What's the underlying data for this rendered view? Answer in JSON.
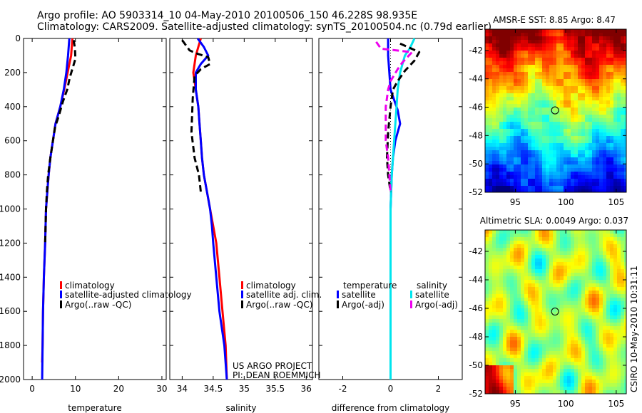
{
  "header": {
    "line1": "Argo profile: AO 5903314_10 04-May-2010 20100506_150 46.228S 98.935E",
    "line2": "Climatology: CARS2009. Satellite-adjusted climatology: synTS_20100504.nc (0.79d earlier)"
  },
  "colors": {
    "climatology": "#ff0000",
    "satellite": "#0000ff",
    "argo": "#000000",
    "sal_satellite": "#00e5ee",
    "sal_argo": "#ee00ee"
  },
  "chart_data": [
    {
      "type": "line",
      "xlabel": "temperature",
      "ylabel": "",
      "xlim": [
        -2,
        31
      ],
      "ylim": [
        2000,
        0
      ],
      "xticks": [
        0,
        10,
        20,
        30
      ],
      "yticks": [
        0,
        200,
        400,
        600,
        800,
        1000,
        1200,
        1400,
        1600,
        1800,
        2000
      ],
      "legend": [
        "climatology",
        "satellite-adjusted climatology",
        "Argo(..raw -QC)"
      ],
      "legend_position": "lower-right",
      "series": [
        {
          "name": "climatology",
          "color": "#ff0000",
          "points": [
            [
              9.3,
              0
            ],
            [
              9.0,
              100
            ],
            [
              8.2,
              200
            ],
            [
              7.4,
              300
            ],
            [
              6.5,
              400
            ],
            [
              5.4,
              500
            ],
            [
              4.8,
              600
            ],
            [
              4.2,
              700
            ],
            [
              3.8,
              800
            ],
            [
              3.5,
              900
            ],
            [
              3.2,
              1000
            ],
            [
              3.0,
              1200
            ],
            [
              2.7,
              1400
            ],
            [
              2.5,
              1600
            ],
            [
              2.4,
              1800
            ],
            [
              2.3,
              1900
            ]
          ]
        },
        {
          "name": "satellite-adjusted climatology",
          "color": "#0000ff",
          "points": [
            [
              8.6,
              0
            ],
            [
              8.3,
              100
            ],
            [
              7.9,
              200
            ],
            [
              7.3,
              300
            ],
            [
              6.5,
              400
            ],
            [
              5.4,
              500
            ],
            [
              4.8,
              600
            ],
            [
              4.2,
              700
            ],
            [
              3.8,
              800
            ],
            [
              3.5,
              900
            ],
            [
              3.2,
              1000
            ],
            [
              3.0,
              1200
            ],
            [
              2.7,
              1400
            ],
            [
              2.5,
              1600
            ],
            [
              2.4,
              1800
            ],
            [
              2.3,
              2000
            ]
          ]
        },
        {
          "name": "Argo(..raw -QC)",
          "color": "#000000",
          "dashed": true,
          "points": [
            [
              9.6,
              10
            ],
            [
              9.9,
              60
            ],
            [
              10.0,
              120
            ],
            [
              9.4,
              170
            ],
            [
              8.7,
              230
            ],
            [
              8.1,
              300
            ],
            [
              7.1,
              370
            ],
            [
              6.2,
              450
            ],
            [
              5.3,
              520
            ],
            [
              4.8,
              600
            ],
            [
              4.2,
              700
            ],
            [
              3.7,
              800
            ],
            [
              3.4,
              900
            ],
            [
              3.2,
              1000
            ],
            [
              3.0,
              1200
            ]
          ]
        }
      ]
    },
    {
      "type": "line",
      "xlabel": "salinity",
      "xlim": [
        33.8,
        36.1
      ],
      "ylim": [
        2000,
        0
      ],
      "xticks": [
        34,
        34.5,
        35,
        35.5,
        36
      ],
      "legend": [
        "climatology",
        "satellite adj. clim.",
        "Argo(..raw -QC)"
      ],
      "legend_position": "lower-right",
      "annotations": [
        "US ARGO PROJECT",
        "PI: DEAN ROEMMICH"
      ],
      "series": [
        {
          "name": "climatology",
          "color": "#ff0000",
          "points": [
            [
              34.3,
              0
            ],
            [
              34.22,
              100
            ],
            [
              34.18,
              200
            ],
            [
              34.22,
              300
            ],
            [
              34.26,
              400
            ],
            [
              34.28,
              500
            ],
            [
              34.3,
              600
            ],
            [
              34.32,
              700
            ],
            [
              34.35,
              800
            ],
            [
              34.4,
              900
            ],
            [
              34.45,
              1000
            ],
            [
              34.5,
              1100
            ],
            [
              34.55,
              1200
            ],
            [
              34.6,
              1400
            ],
            [
              34.65,
              1600
            ],
            [
              34.7,
              1800
            ],
            [
              34.72,
              2000
            ]
          ]
        },
        {
          "name": "satellite adj. clim.",
          "color": "#0000ff",
          "points": [
            [
              34.25,
              0
            ],
            [
              34.35,
              50
            ],
            [
              34.42,
              100
            ],
            [
              34.3,
              150
            ],
            [
              34.22,
              200
            ],
            [
              34.22,
              300
            ],
            [
              34.26,
              400
            ],
            [
              34.28,
              500
            ],
            [
              34.3,
              600
            ],
            [
              34.32,
              700
            ],
            [
              34.35,
              800
            ],
            [
              34.4,
              900
            ],
            [
              34.45,
              1000
            ],
            [
              34.48,
              1100
            ],
            [
              34.5,
              1200
            ],
            [
              34.55,
              1400
            ],
            [
              34.6,
              1600
            ],
            [
              34.68,
              1800
            ],
            [
              34.72,
              2000
            ]
          ]
        },
        {
          "name": "Argo(..raw -QC)",
          "color": "#000000",
          "dashed": true,
          "points": [
            [
              34.0,
              10
            ],
            [
              34.12,
              70
            ],
            [
              34.25,
              90
            ],
            [
              34.42,
              110
            ],
            [
              34.45,
              150
            ],
            [
              34.3,
              180
            ],
            [
              34.2,
              220
            ],
            [
              34.17,
              350
            ],
            [
              34.15,
              550
            ],
            [
              34.2,
              700
            ],
            [
              34.27,
              800
            ],
            [
              34.3,
              900
            ]
          ]
        }
      ]
    },
    {
      "type": "line",
      "xlabel": "difference from climatology",
      "xlim": [
        -3,
        3
      ],
      "ylim": [
        2000,
        0
      ],
      "xticks": [
        -2,
        0,
        2
      ],
      "legend_groups": [
        {
          "title": "temperature",
          "entries": [
            "satellite",
            "Argo(-adj)"
          ]
        },
        {
          "title": "salinity",
          "entries": [
            "satellite",
            "Argo(-adj)"
          ]
        }
      ],
      "legend_position": "lower-right",
      "series": [
        {
          "name": "temperature satellite",
          "color": "#0000ff",
          "points": [
            [
              -0.1,
              0
            ],
            [
              -0.1,
              100
            ],
            [
              0,
              300
            ],
            [
              0.3,
              420
            ],
            [
              0.4,
              500
            ],
            [
              0.3,
              550
            ],
            [
              0.2,
              600
            ],
            [
              0.1,
              700
            ],
            [
              0.05,
              800
            ],
            [
              0,
              1000
            ],
            [
              0,
              2000
            ]
          ]
        },
        {
          "name": "salinity satellite",
          "color": "#00e5ee",
          "points": [
            [
              1.0,
              0
            ],
            [
              0.8,
              60
            ],
            [
              0.6,
              100
            ],
            [
              0.4,
              200
            ],
            [
              0.3,
              300
            ],
            [
              0.25,
              400
            ],
            [
              0.2,
              500
            ],
            [
              0.15,
              600
            ],
            [
              0.1,
              700
            ],
            [
              0.05,
              800
            ],
            [
              0,
              1000
            ],
            [
              0,
              2000
            ]
          ]
        },
        {
          "name": "temperature Argo(-adj)",
          "color": "#000000",
          "dashed": true,
          "points": [
            [
              0.4,
              30
            ],
            [
              1.2,
              80
            ],
            [
              1.0,
              130
            ],
            [
              0.6,
              190
            ],
            [
              0.3,
              250
            ],
            [
              0.1,
              300
            ],
            [
              0,
              400
            ],
            [
              -0.1,
              550
            ],
            [
              -0.15,
              700
            ],
            [
              -0.1,
              800
            ],
            [
              0,
              900
            ]
          ]
        },
        {
          "name": "salinity Argo(-adj)",
          "color": "#ee00ee",
          "dashed": true,
          "points": [
            [
              -0.6,
              20
            ],
            [
              -0.4,
              60
            ],
            [
              0.9,
              80
            ],
            [
              0.5,
              140
            ],
            [
              0.3,
              180
            ],
            [
              0,
              250
            ],
            [
              -0.1,
              300
            ],
            [
              -0.2,
              400
            ],
            [
              -0.2,
              600
            ],
            [
              -0.1,
              700
            ],
            [
              -0.05,
              800
            ],
            [
              0,
              900
            ]
          ]
        }
      ]
    },
    {
      "type": "heatmap",
      "title": "AMSR-E SST: 8.85 Argo: 8.47",
      "xlim": [
        92,
        106
      ],
      "ylim": [
        -52,
        -40.5
      ],
      "xticks": [
        95,
        100,
        105
      ],
      "yticks": [
        -42,
        -44,
        -46,
        -48,
        -50,
        -52
      ],
      "marker": {
        "lon": 98.935,
        "lat": -46.228
      }
    },
    {
      "type": "heatmap",
      "title": "Altimetric SLA: 0.0049 Argo: 0.037",
      "xlim": [
        92,
        106
      ],
      "ylim": [
        -52,
        -40.5
      ],
      "xticks": [
        95,
        100,
        105
      ],
      "yticks": [
        -42,
        -44,
        -46,
        -48,
        -50,
        -52
      ],
      "marker": {
        "lon": 98.935,
        "lat": -46.228
      }
    }
  ],
  "side_label": "CSIRO 10-May-2010 10:31:11"
}
